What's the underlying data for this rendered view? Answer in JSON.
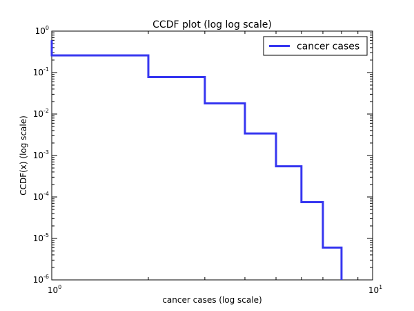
{
  "chart_data": {
    "type": "line",
    "title": "CCDF plot (log log scale)",
    "xlabel": "cancer cases (log scale)",
    "ylabel": "CCDF(x) (log scale)",
    "xscale": "log",
    "yscale": "log",
    "xlim": [
      1,
      10
    ],
    "ylim": [
      1e-06,
      1
    ],
    "grid": false,
    "legend_position": "top-right",
    "x_ticks": [
      {
        "value": 1,
        "base": "10",
        "exp": "0"
      },
      {
        "value": 10,
        "base": "10",
        "exp": "1"
      }
    ],
    "y_ticks": [
      {
        "value": 1,
        "base": "10",
        "exp": "0"
      },
      {
        "value": 0.1,
        "base": "10",
        "exp": "-1"
      },
      {
        "value": 0.01,
        "base": "10",
        "exp": "-2"
      },
      {
        "value": 0.001,
        "base": "10",
        "exp": "-3"
      },
      {
        "value": 0.0001,
        "base": "10",
        "exp": "-4"
      },
      {
        "value": 1e-05,
        "base": "10",
        "exp": "-5"
      },
      {
        "value": 1e-06,
        "base": "10",
        "exp": "-6"
      }
    ],
    "series": [
      {
        "name": "cancer cases",
        "color": "#3636f0",
        "step": "post",
        "x": [
          1,
          1,
          2,
          3,
          4,
          5,
          6,
          7,
          8,
          8
        ],
        "y": [
          0.6,
          0.26,
          0.078,
          0.018,
          0.0034,
          0.00055,
          7.5e-05,
          6e-06,
          6e-06,
          1e-06
        ]
      }
    ]
  }
}
